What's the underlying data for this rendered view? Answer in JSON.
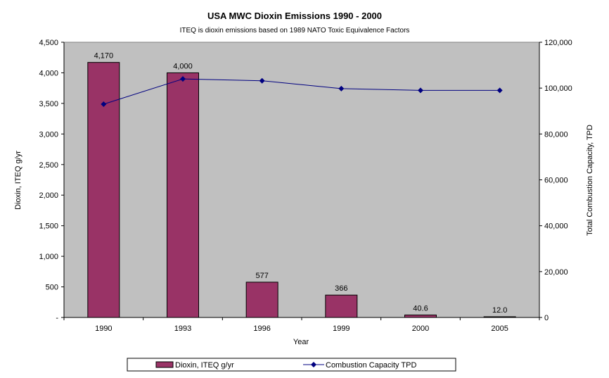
{
  "chart_data": {
    "type": "bar",
    "title": "USA MWC Dioxin Emissions 1990 - 2000",
    "subtitle": "ITEQ is dioxin emissions based on 1989 NATO Toxic Equivalence Factors",
    "xlabel": "Year",
    "ylabel": "Dioxin, ITEQ g/yr",
    "y2label": "Total Combustion Capacity, TPD",
    "categories": [
      "1990",
      "1993",
      "1996",
      "1999",
      "2000",
      "2005"
    ],
    "ylim": [
      0,
      4500
    ],
    "y2lim": [
      0,
      120000
    ],
    "yticks": [
      "-",
      "500",
      "1,000",
      "1,500",
      "2,000",
      "2,500",
      "3,000",
      "3,500",
      "4,000",
      "4,500"
    ],
    "y2ticks": [
      "0",
      "20,000",
      "40,000",
      "60,000",
      "80,000",
      "100,000",
      "120,000"
    ],
    "series": [
      {
        "name": "Dioxin, ITEQ g/yr",
        "type": "bar",
        "axis": "left",
        "color": "#993366",
        "values": [
          4170,
          4000,
          577,
          366,
          40.6,
          12.0
        ],
        "labels": [
          "4,170",
          "4,000",
          "577",
          "366",
          "40.6",
          "12.0"
        ]
      },
      {
        "name": "Combustion Capacity TPD",
        "type": "line",
        "axis": "right",
        "color": "#000080",
        "values": [
          93000,
          104000,
          103200,
          99800,
          99000,
          99000
        ]
      }
    ],
    "plot_background": "#c0c0c0",
    "grid": false,
    "legend_position": "bottom"
  }
}
